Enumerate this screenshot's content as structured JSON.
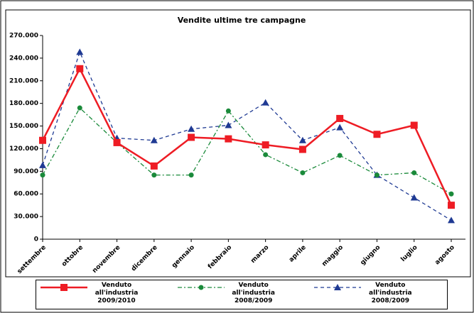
{
  "chart_data": {
    "type": "line",
    "title": "Vendite ultime tre campagne",
    "categories": [
      "settembre",
      "ottobre",
      "novembre",
      "dicembre",
      "gennaio",
      "febbraio",
      "marzo",
      "aprile",
      "maggio",
      "giugno",
      "luglio",
      "agosto"
    ],
    "series": [
      {
        "name": "Venduto all'industria 2009/2010",
        "color": "#ee1c24",
        "marker": "square",
        "dash": "none",
        "values": [
          131000,
          226000,
          128000,
          97000,
          135000,
          133000,
          125000,
          119000,
          160000,
          139000,
          151000,
          45000
        ]
      },
      {
        "name": "Venduto all'industria 2008/2009",
        "color": "#1a8a3a",
        "marker": "circle",
        "dash": "6,3,2,3",
        "values": [
          85000,
          174000,
          128000,
          85000,
          85000,
          170000,
          112000,
          88000,
          111000,
          85000,
          88000,
          60000
        ]
      },
      {
        "name": "Venduto all'industria 2008/2009",
        "color": "#1f3a93",
        "marker": "triangle",
        "dash": "5,4",
        "values": [
          98000,
          248000,
          134000,
          131000,
          146000,
          151000,
          181000,
          131000,
          148000,
          85000,
          55000,
          25000
        ]
      }
    ],
    "ylim": [
      0,
      270000
    ],
    "yticks": [
      0,
      {
        "value": 30000,
        "label": "30.000"
      },
      {
        "value": 60000,
        "label": "60.000"
      },
      {
        "value": 90000,
        "label": "90.000"
      },
      {
        "value": 120000,
        "label": "120.000"
      },
      {
        "value": 150000,
        "label": "150.000"
      },
      {
        "value": 180000,
        "label": "180.000"
      },
      {
        "value": 210000,
        "label": "210.000"
      },
      {
        "value": 240000,
        "label": "240.000"
      },
      {
        "value": 270000,
        "label": "270.000"
      }
    ],
    "grid": false,
    "legend": "bottom"
  }
}
